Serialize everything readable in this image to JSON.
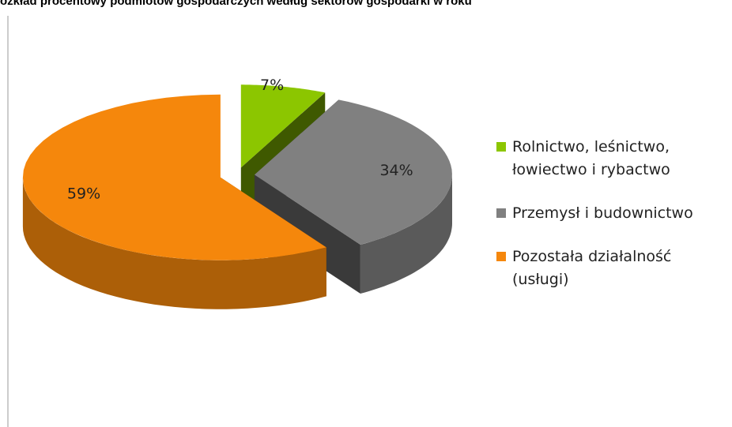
{
  "chart_data": {
    "type": "pie",
    "title": "ozkład procentowy podmiotów gospodarczych według sektorów gospodarki w roku",
    "categories": [
      "Rolnictwo, leśnictwo, łowiectwo i rybactwo",
      "Przemysł i budownictwo",
      "Pozostała działalność (usługi)"
    ],
    "values": [
      7,
      34,
      59
    ],
    "value_labels": [
      "7%",
      "34%",
      "59%"
    ],
    "colors": [
      "#8cc600",
      "#808080",
      "#f5870c"
    ],
    "legend": "right"
  }
}
